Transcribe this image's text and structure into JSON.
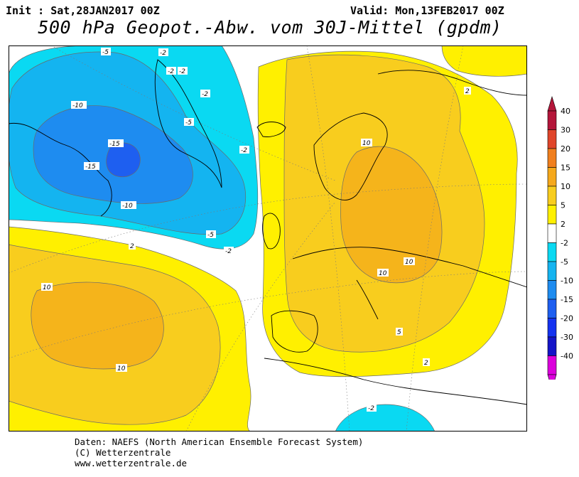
{
  "header": {
    "init": "Init : Sat,28JAN2017 00Z",
    "valid": "Valid: Mon,13FEB2017 00Z",
    "title": "500 hPa Geopot.-Abw. vom 30J-Mittel (gpdm)"
  },
  "footer": {
    "line1": "Daten: NAEFS (North American Ensemble Forecast System)",
    "line2": "(C) Wetterzentrale",
    "line3": "www.wetterzentrale.de"
  },
  "map_labels": {
    "m15a": "-15",
    "m15b": "-15",
    "m10a": "-10",
    "m10b": "-10",
    "m5a": "-5",
    "m5b": "-5",
    "m5c": "-5",
    "m2a": "-2",
    "m2b": "-2",
    "m2c": "-2",
    "m2d": "-2",
    "m2e": "-2",
    "m2f": "-2",
    "m2g": "-2",
    "p2a": "2",
    "p2b": "2",
    "p2c": "2",
    "p5a": "5",
    "p10a": "10",
    "p10b": "10",
    "p10c": "10",
    "p10d": "10",
    "p10e": "10"
  },
  "legend": {
    "colors": [
      "#b4163a",
      "#e0452a",
      "#f07f1e",
      "#f5a81b",
      "#f8cd1e",
      "#fff000",
      "#ffffff",
      "#0ad9f2",
      "#14b4f0",
      "#1e8cf0",
      "#1e5ff0",
      "#1432f0",
      "#1414c8",
      "#dc00dc"
    ],
    "labels": [
      "40",
      "30",
      "20",
      "15",
      "10",
      "5",
      "2",
      "-2",
      "-5",
      "-10",
      "-15",
      "-20",
      "-30",
      "-40"
    ]
  },
  "colors": {
    "pos2": "#fff000",
    "pos5": "#f8cd1e",
    "pos10": "#f5b41b",
    "neg2": "#0ad9f2",
    "neg5": "#14b4f0",
    "neg10": "#1e8cf0",
    "neg15": "#1e5ff0"
  }
}
